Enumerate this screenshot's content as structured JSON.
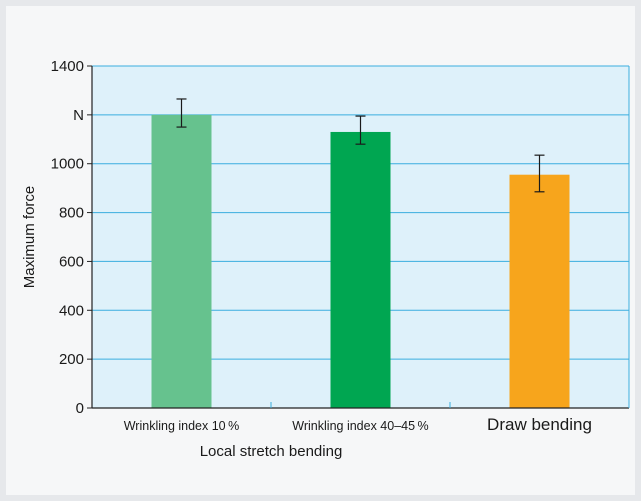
{
  "chart_data": {
    "type": "bar",
    "categories": [
      "Wrinkling index 10 %",
      "Wrinkling index 40–45 %",
      "Draw bending"
    ],
    "values": [
      1200,
      1130,
      955
    ],
    "error_low": [
      1150,
      1080,
      885
    ],
    "error_high": [
      1265,
      1195,
      1035
    ],
    "colors": [
      "#66c28e",
      "#00a651",
      "#f7a51c"
    ],
    "ylabel": "Maximum force",
    "group_label": "Local stretch bending",
    "ylim": [
      0,
      1400
    ],
    "yticks": [
      "0",
      "200",
      "400",
      "600",
      "800",
      "1000",
      "N",
      "1400"
    ],
    "plot_background": "#def1fa",
    "grid_color": "#3aaedf",
    "grid": true
  }
}
